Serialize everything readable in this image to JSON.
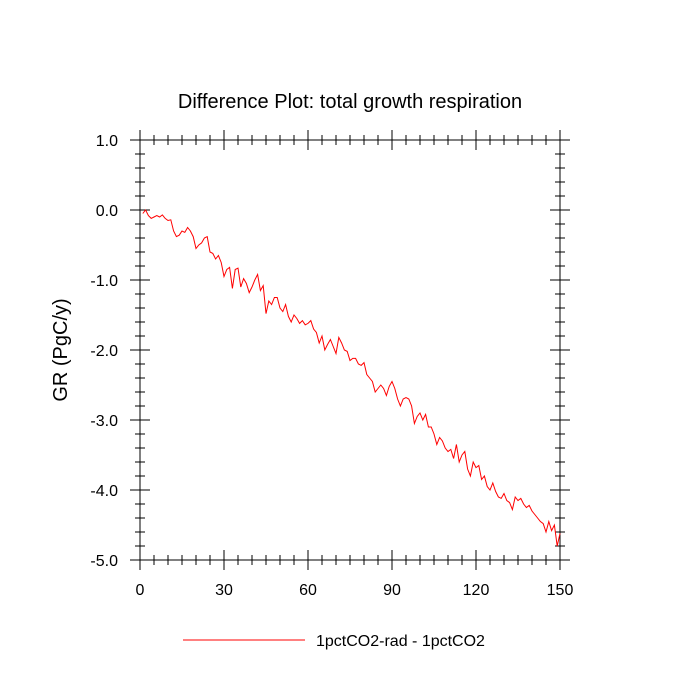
{
  "chart_data": {
    "type": "line",
    "title": "Difference Plot: total growth respiration",
    "xlabel": "",
    "ylabel": "GR  (PgC/y)",
    "xlim": [
      0,
      150
    ],
    "ylim": [
      -5.0,
      1.0
    ],
    "x_ticks": [
      0,
      30,
      60,
      90,
      120,
      150
    ],
    "x_tick_labels": [
      "0",
      "30",
      "60",
      "90",
      "120",
      "150"
    ],
    "y_ticks": [
      1.0,
      0.0,
      -1.0,
      -2.0,
      -3.0,
      -4.0,
      -5.0
    ],
    "y_tick_labels": [
      "1.0",
      "0.0",
      "-1.0",
      "-2.0",
      "-3.0",
      "-4.0",
      "-5.0"
    ],
    "grid": false,
    "legend_position": "bottom",
    "series": [
      {
        "name": "1pctCO2-rad - 1pctCO2",
        "color": "#ff0000",
        "x": [
          1,
          2,
          3,
          4,
          5,
          6,
          7,
          8,
          9,
          10,
          11,
          12,
          13,
          14,
          15,
          16,
          17,
          18,
          19,
          20,
          21,
          22,
          23,
          24,
          25,
          26,
          27,
          28,
          29,
          30,
          31,
          32,
          33,
          34,
          35,
          36,
          37,
          38,
          39,
          40,
          41,
          42,
          43,
          44,
          45,
          46,
          47,
          48,
          49,
          50,
          51,
          52,
          53,
          54,
          55,
          56,
          57,
          58,
          59,
          60,
          61,
          62,
          63,
          64,
          65,
          66,
          67,
          68,
          69,
          70,
          71,
          72,
          73,
          74,
          75,
          76,
          77,
          78,
          79,
          80,
          81,
          82,
          83,
          84,
          85,
          86,
          87,
          88,
          89,
          90,
          91,
          92,
          93,
          94,
          95,
          96,
          97,
          98,
          99,
          100,
          101,
          102,
          103,
          104,
          105,
          106,
          107,
          108,
          109,
          110,
          111,
          112,
          113,
          114,
          115,
          116,
          117,
          118,
          119,
          120,
          121,
          122,
          123,
          124,
          125,
          126,
          127,
          128,
          129,
          130,
          131,
          132,
          133,
          134,
          135,
          136,
          137,
          138,
          139,
          140,
          141,
          142,
          143,
          144,
          145,
          146,
          147,
          148,
          149,
          150
        ],
        "y": [
          -0.05,
          0.0,
          -0.08,
          -0.12,
          -0.1,
          -0.08,
          -0.1,
          -0.07,
          -0.12,
          -0.15,
          -0.14,
          -0.3,
          -0.38,
          -0.36,
          -0.3,
          -0.32,
          -0.25,
          -0.3,
          -0.38,
          -0.55,
          -0.5,
          -0.47,
          -0.4,
          -0.38,
          -0.6,
          -0.62,
          -0.7,
          -0.65,
          -0.75,
          -0.95,
          -0.85,
          -0.82,
          -1.12,
          -0.85,
          -0.83,
          -1.1,
          -0.98,
          -1.05,
          -1.18,
          -1.1,
          -1.0,
          -0.92,
          -1.15,
          -1.08,
          -1.48,
          -1.3,
          -1.35,
          -1.25,
          -1.25,
          -1.4,
          -1.45,
          -1.35,
          -1.52,
          -1.6,
          -1.5,
          -1.55,
          -1.62,
          -1.58,
          -1.64,
          -1.62,
          -1.58,
          -1.7,
          -1.75,
          -1.9,
          -1.8,
          -2.0,
          -1.92,
          -1.85,
          -1.95,
          -2.05,
          -1.82,
          -1.9,
          -2.0,
          -2.02,
          -2.15,
          -2.12,
          -2.12,
          -2.2,
          -2.22,
          -2.18,
          -2.35,
          -2.4,
          -2.45,
          -2.6,
          -2.55,
          -2.5,
          -2.55,
          -2.65,
          -2.52,
          -2.45,
          -2.55,
          -2.7,
          -2.8,
          -2.7,
          -2.68,
          -2.7,
          -2.8,
          -3.05,
          -2.95,
          -2.9,
          -3.0,
          -2.92,
          -3.1,
          -3.1,
          -3.2,
          -3.35,
          -3.25,
          -3.3,
          -3.4,
          -3.45,
          -3.42,
          -3.55,
          -3.35,
          -3.6,
          -3.5,
          -3.45,
          -3.7,
          -3.8,
          -3.6,
          -3.68,
          -3.65,
          -3.85,
          -3.8,
          -3.95,
          -4.0,
          -3.9,
          -4.02,
          -4.1,
          -4.12,
          -4.05,
          -4.15,
          -4.18,
          -4.28,
          -4.1,
          -4.15,
          -4.12,
          -4.2,
          -4.25,
          -4.22,
          -4.3,
          -4.35,
          -4.4,
          -4.45,
          -4.48,
          -4.6,
          -4.45,
          -4.58,
          -4.5,
          -4.8,
          -4.62
        ]
      }
    ]
  }
}
